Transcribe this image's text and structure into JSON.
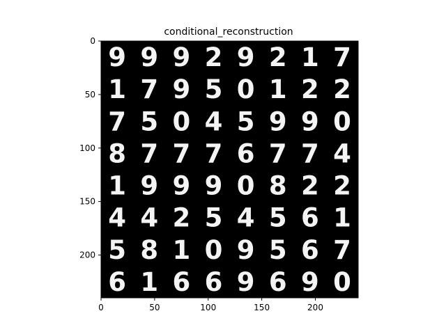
{
  "figure": {
    "title": "conditional_reconstruction",
    "background": "#ffffff",
    "plot_background": "#000000",
    "digit_color": "#f4f4f4"
  },
  "axes": {
    "x": {
      "range": [
        0,
        240
      ],
      "ticks": [
        0,
        50,
        100,
        150,
        200
      ],
      "tick_labels": [
        "0",
        "50",
        "100",
        "150",
        "200"
      ]
    },
    "y": {
      "range": [
        0,
        240
      ],
      "ticks": [
        0,
        50,
        100,
        150,
        200
      ],
      "tick_labels": [
        "0",
        "50",
        "100",
        "150",
        "200"
      ],
      "inverted": true
    }
  },
  "image_grid": {
    "rows": 8,
    "cols": 8,
    "cell_size": 30,
    "digits": [
      [
        "9",
        "9",
        "9",
        "2",
        "9",
        "2",
        "1",
        "7"
      ],
      [
        "1",
        "7",
        "9",
        "5",
        "0",
        "1",
        "2",
        "2"
      ],
      [
        "7",
        "5",
        "0",
        "4",
        "5",
        "9",
        "9",
        "0"
      ],
      [
        "8",
        "7",
        "7",
        "7",
        "6",
        "7",
        "7",
        "4"
      ],
      [
        "1",
        "9",
        "9",
        "9",
        "0",
        "8",
        "2",
        "2"
      ],
      [
        "4",
        "4",
        "2",
        "5",
        "4",
        "5",
        "6",
        "1"
      ],
      [
        "5",
        "8",
        "1",
        "0",
        "9",
        "5",
        "6",
        "7"
      ],
      [
        "6",
        "1",
        "6",
        "6",
        "9",
        "6",
        "9",
        "0"
      ]
    ]
  }
}
